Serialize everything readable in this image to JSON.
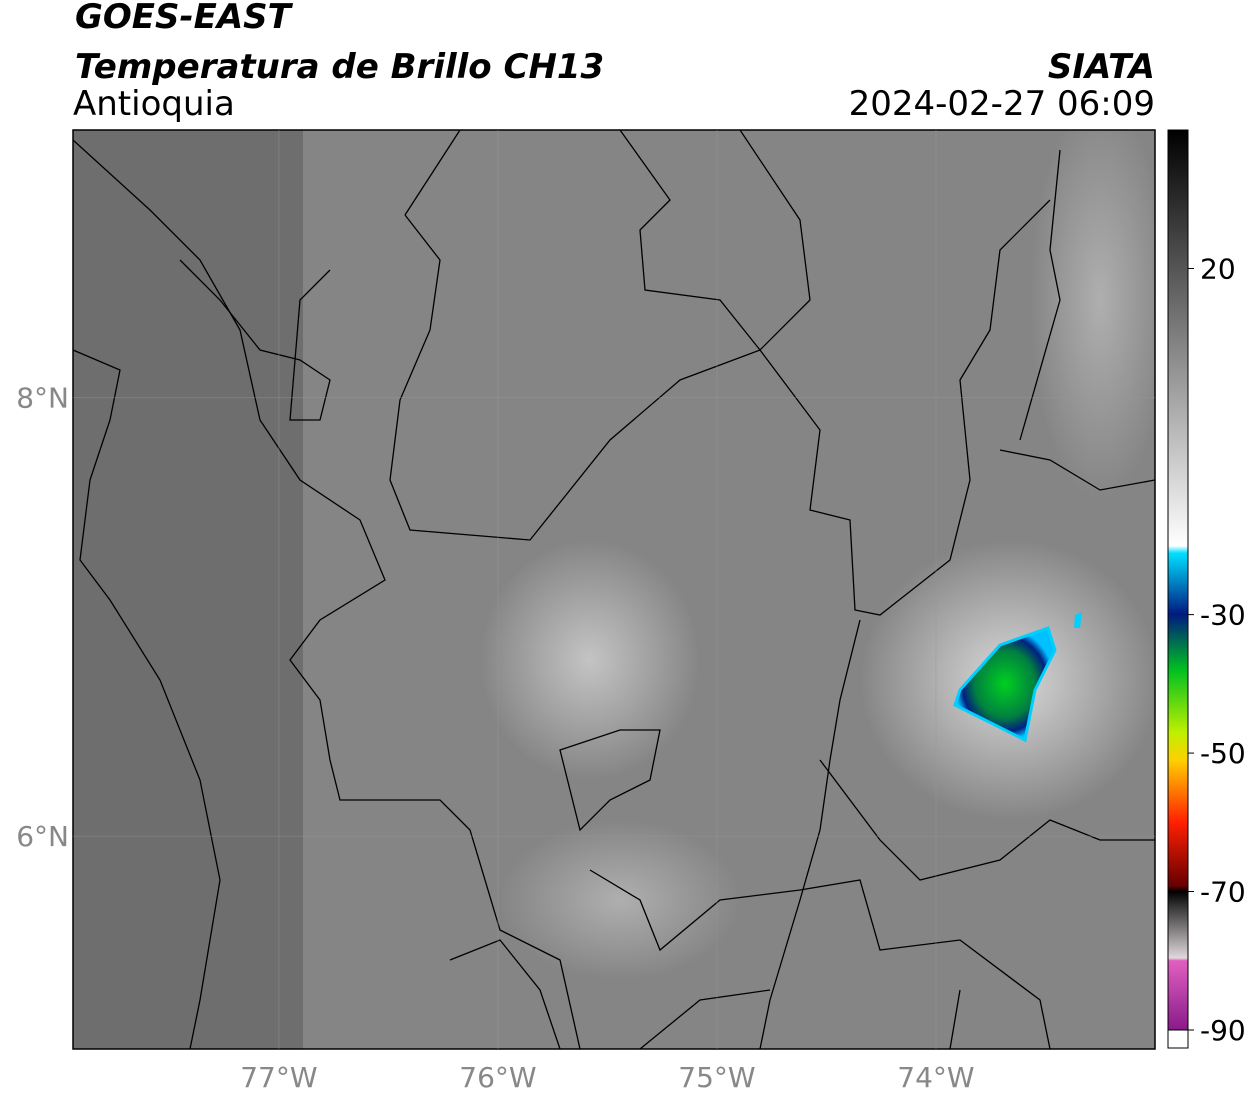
{
  "header": {
    "title": "GOES-EAST",
    "subtitle": "Temperatura de Brillo CH13",
    "region": "Antioquia",
    "source": "SIATA",
    "datetime": "2024-02-27 06:09"
  },
  "map": {
    "xlim": [
      -77.94,
      -73.0
    ],
    "ylim": [
      5.03,
      9.22
    ],
    "xticks": [
      {
        "value": -77,
        "label": "77°W"
      },
      {
        "value": -76,
        "label": "76°W"
      },
      {
        "value": -75,
        "label": "75°W"
      },
      {
        "value": -74,
        "label": "74°W"
      }
    ],
    "yticks": [
      {
        "value": 8,
        "label": "8°N"
      },
      {
        "value": 6,
        "label": "6°N"
      }
    ],
    "grid": true
  },
  "colorbar": {
    "lim": [
      -90,
      40
    ],
    "ticks": [
      20,
      -30,
      -50,
      -70,
      -90
    ]
  }
}
